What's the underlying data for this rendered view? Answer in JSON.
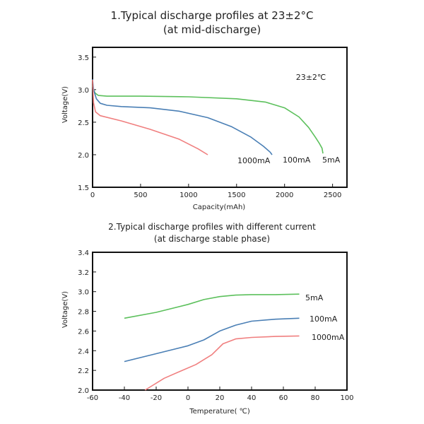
{
  "chart_data": [
    {
      "type": "line",
      "title": "1.Typical discharge profiles at 23±2°C",
      "subtitle": "(at mid-discharge)",
      "xlabel": "Capacity(mAh)",
      "ylabel": "Voltage(V)",
      "xlim": [
        0,
        2650
      ],
      "ylim": [
        1.5,
        3.65
      ],
      "x_ticks": [
        "0",
        "500",
        "1000",
        "1500",
        "2000",
        "2500"
      ],
      "y_ticks": [
        "1.5",
        "2.0",
        "2.5",
        "3.0",
        "3.5"
      ],
      "annotation": "23±2℃",
      "series": [
        {
          "name": "5mA",
          "color": "#5cc05c",
          "points": [
            [
              0,
              3.06
            ],
            [
              10,
              3.0
            ],
            [
              25,
              2.95
            ],
            [
              60,
              2.91
            ],
            [
              150,
              2.9
            ],
            [
              500,
              2.9
            ],
            [
              1000,
              2.89
            ],
            [
              1500,
              2.86
            ],
            [
              1800,
              2.81
            ],
            [
              2000,
              2.72
            ],
            [
              2150,
              2.58
            ],
            [
              2250,
              2.42
            ],
            [
              2320,
              2.27
            ],
            [
              2360,
              2.18
            ],
            [
              2390,
              2.1
            ],
            [
              2400,
              2.02
            ]
          ]
        },
        {
          "name": "100mA",
          "color": "#4a7fb5",
          "points": [
            [
              0,
              3.16
            ],
            [
              10,
              3.0
            ],
            [
              40,
              2.86
            ],
            [
              80,
              2.79
            ],
            [
              150,
              2.76
            ],
            [
              300,
              2.74
            ],
            [
              600,
              2.72
            ],
            [
              900,
              2.67
            ],
            [
              1200,
              2.57
            ],
            [
              1450,
              2.43
            ],
            [
              1650,
              2.27
            ],
            [
              1780,
              2.13
            ],
            [
              1850,
              2.04
            ],
            [
              1870,
              2.0
            ]
          ]
        },
        {
          "name": "1000mA",
          "color": "#f07f7f",
          "points": [
            [
              0,
              3.15
            ],
            [
              10,
              2.8
            ],
            [
              30,
              2.66
            ],
            [
              80,
              2.6
            ],
            [
              300,
              2.52
            ],
            [
              600,
              2.39
            ],
            [
              900,
              2.24
            ],
            [
              1100,
              2.09
            ],
            [
              1200,
              2.0
            ]
          ]
        }
      ]
    },
    {
      "type": "line",
      "title": "2.Typical discharge profiles with different current",
      "subtitle": "(at discharge stable phase)",
      "xlabel": "Temperature( ℃)",
      "ylabel": "Voltage(V)",
      "xlim": [
        -60,
        100
      ],
      "ylim": [
        2.0,
        3.4
      ],
      "x_ticks": [
        "-60",
        "-40",
        "-20",
        "0",
        "20",
        "40",
        "60",
        "80",
        "100"
      ],
      "y_ticks": [
        "2.0",
        "2.2",
        "2.4",
        "2.6",
        "2.8",
        "3.0",
        "3.2",
        "3.4"
      ],
      "series": [
        {
          "name": "5mA",
          "color": "#5cc05c",
          "points": [
            [
              -40,
              2.73
            ],
            [
              -20,
              2.79
            ],
            [
              0,
              2.87
            ],
            [
              10,
              2.92
            ],
            [
              20,
              2.95
            ],
            [
              30,
              2.965
            ],
            [
              40,
              2.97
            ],
            [
              55,
              2.97
            ],
            [
              70,
              2.975
            ]
          ]
        },
        {
          "name": "100mA",
          "color": "#4a7fb5",
          "points": [
            [
              -40,
              2.29
            ],
            [
              -20,
              2.37
            ],
            [
              0,
              2.45
            ],
            [
              10,
              2.51
            ],
            [
              20,
              2.6
            ],
            [
              30,
              2.66
            ],
            [
              40,
              2.7
            ],
            [
              55,
              2.72
            ],
            [
              70,
              2.73
            ]
          ]
        },
        {
          "name": "1000mA",
          "color": "#f07f7f",
          "points": [
            [
              -27,
              2.0
            ],
            [
              -15,
              2.12
            ],
            [
              -5,
              2.19
            ],
            [
              5,
              2.26
            ],
            [
              15,
              2.36
            ],
            [
              22,
              2.47
            ],
            [
              30,
              2.52
            ],
            [
              40,
              2.535
            ],
            [
              55,
              2.545
            ],
            [
              70,
              2.55
            ]
          ]
        }
      ]
    }
  ]
}
